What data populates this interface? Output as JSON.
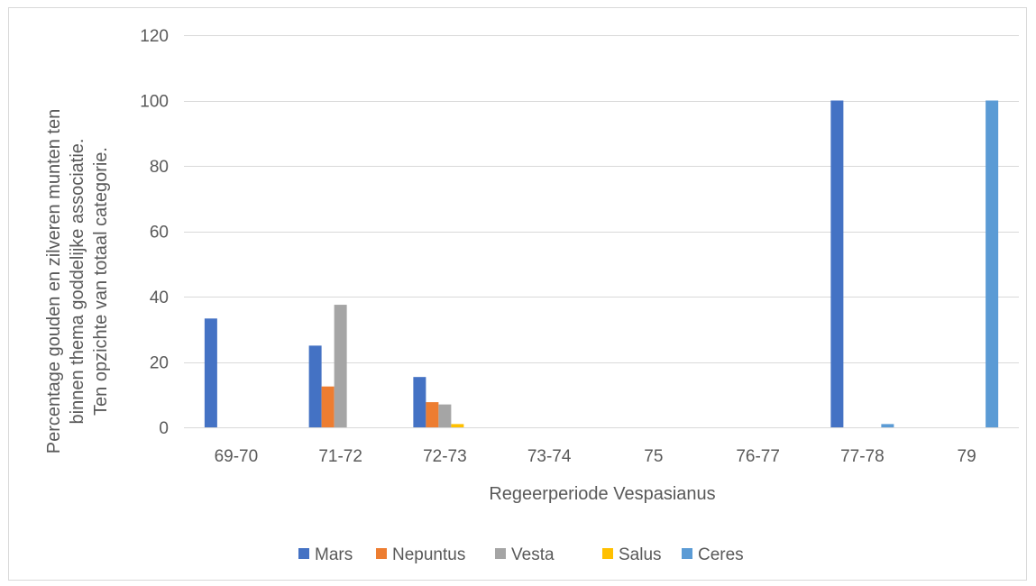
{
  "chart_data": {
    "type": "bar",
    "title": "",
    "xlabel": "Regeerperiode Vespasianus",
    "ylabel_lines": [
      "Percentage  gouden en zilveren munten ten",
      "binnen thema goddelijke associatie.",
      "Ten opzichte van totaal categorie."
    ],
    "ylim": [
      0,
      120
    ],
    "yticks": [
      0,
      20,
      40,
      60,
      80,
      100,
      120
    ],
    "grid": true,
    "legend_position": "bottom",
    "categories": [
      "69-70",
      "71-72",
      "72-73",
      "73-74",
      "75",
      "76-77",
      "77-78",
      "79"
    ],
    "series": [
      {
        "name": "Mars",
        "color": "#4472C4",
        "values": [
          33.3,
          25,
          15.4,
          0,
          0,
          0,
          100,
          0
        ]
      },
      {
        "name": "Nepuntus",
        "color": "#ED7D31",
        "values": [
          0,
          12.5,
          7.7,
          0,
          0,
          0,
          0,
          0
        ]
      },
      {
        "name": "Vesta",
        "color": "#A5A5A5",
        "values": [
          0,
          37.5,
          7.0,
          0,
          0,
          0,
          0,
          0
        ]
      },
      {
        "name": "Salus",
        "color": "#FFC000",
        "values": [
          0,
          0,
          1.0,
          0,
          0,
          0,
          0,
          0
        ]
      },
      {
        "name": "Ceres",
        "color": "#5B9BD5",
        "values": [
          0,
          0,
          0,
          0,
          0,
          0,
          1.0,
          100
        ]
      }
    ]
  }
}
